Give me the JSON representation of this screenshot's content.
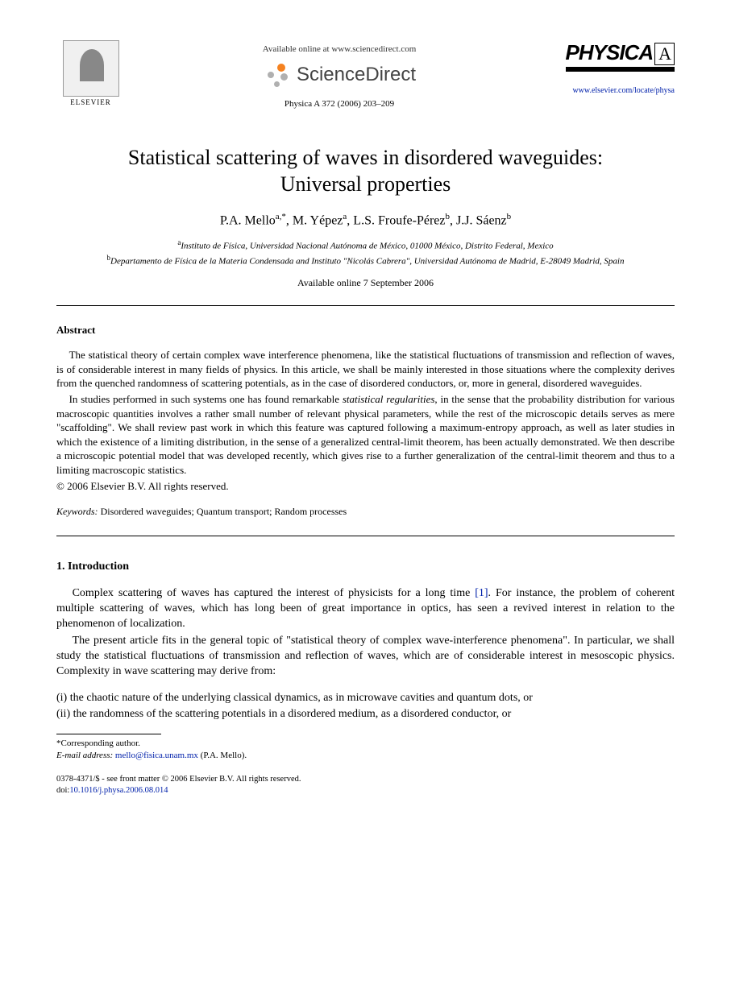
{
  "header": {
    "available_online": "Available online at www.sciencedirect.com",
    "sciencedirect": "ScienceDirect",
    "journal_ref": "Physica A 372 (2006) 203–209",
    "elsevier": "ELSEVIER",
    "physica_label": "PHYSICA",
    "physica_letter": "A",
    "journal_url": "www.elsevier.com/locate/physa"
  },
  "title_line1": "Statistical scattering of waves in disordered waveguides:",
  "title_line2": "Universal properties",
  "authors_html": "P.A. Mello<sup>a,*</sup>, M. Yépez<sup>a</sup>, L.S. Froufe-Pérez<sup>b</sup>, J.J. Sáenz<sup>b</sup>",
  "affiliations": {
    "a": "Instituto de Física, Universidad Nacional Autónoma de México, 01000 México, Distrito Federal, Mexico",
    "b": "Departamento de Física de la Materia Condensada and Instituto \"Nicolás Cabrera\", Universidad Autónoma de Madrid, E-28049 Madrid, Spain"
  },
  "available_date": "Available online 7 September 2006",
  "abstract": {
    "heading": "Abstract",
    "p1": "The statistical theory of certain complex wave interference phenomena, like the statistical fluctuations of transmission and reflection of waves, is of considerable interest in many fields of physics. In this article, we shall be mainly interested in those situations where the complexity derives from the quenched randomness of scattering potentials, as in the case of disordered conductors, or, more in general, disordered waveguides.",
    "p2_pre": "In studies performed in such systems one has found remarkable ",
    "p2_em": "statistical regularities",
    "p2_post": ", in the sense that the probability distribution for various macroscopic quantities involves a rather small number of relevant physical parameters, while the rest of the microscopic details serves as mere \"scaffolding\". We shall review past work in which this feature was captured following a maximum-entropy approach, as well as later studies in which the existence of a limiting distribution, in the sense of a generalized central-limit theorem, has been actually demonstrated. We then describe a microscopic potential model that was developed recently, which gives rise to a further generalization of the central-limit theorem and thus to a limiting macroscopic statistics.",
    "copyright": "© 2006 Elsevier B.V. All rights reserved."
  },
  "keywords": {
    "label": "Keywords:",
    "text": " Disordered waveguides; Quantum transport; Random processes"
  },
  "section1": {
    "heading": "1. Introduction",
    "p1_pre": "Complex scattering of waves has captured the interest of physicists for a long time ",
    "p1_ref": "[1]",
    "p1_post": ". For instance, the problem of coherent multiple scattering of waves, which has long been of great importance in optics, has seen a revived interest in relation to the phenomenon of localization.",
    "p2": "The present article fits in the general topic of \"statistical theory of complex wave-interference phenomena\". In particular, we shall study the statistical fluctuations of transmission and reflection of waves, which are of considerable interest in mesoscopic physics. Complexity in wave scattering may derive from:",
    "enum_i": "(i) the chaotic nature of the underlying classical dynamics, as in microwave cavities and quantum dots, or",
    "enum_ii": "(ii) the randomness of the scattering potentials in a disordered medium, as a disordered conductor, or"
  },
  "footnotes": {
    "corresponding": "*Corresponding author.",
    "email_label": "E-mail address:",
    "email": "mello@fisica.unam.mx",
    "email_author": " (P.A. Mello)."
  },
  "bottom": {
    "line1": "0378-4371/$ - see front matter © 2006 Elsevier B.V. All rights reserved.",
    "doi_label": "doi:",
    "doi": "10.1016/j.physa.2006.08.014"
  },
  "colors": {
    "link": "#0020aa",
    "text": "#000000",
    "bg": "#ffffff",
    "sd_orange": "#f58220",
    "sd_gray": "#b0b0b0"
  }
}
